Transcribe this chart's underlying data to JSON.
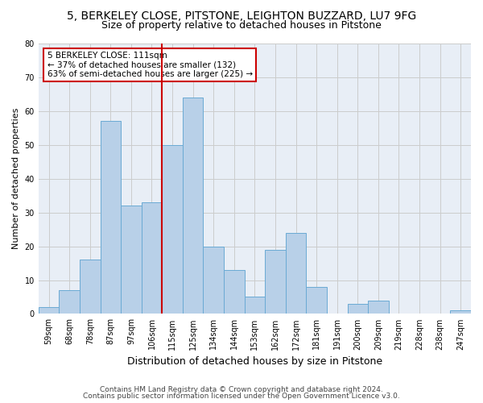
{
  "title1": "5, BERKELEY CLOSE, PITSTONE, LEIGHTON BUZZARD, LU7 9FG",
  "title2": "Size of property relative to detached houses in Pitstone",
  "xlabel": "Distribution of detached houses by size in Pitstone",
  "ylabel": "Number of detached properties",
  "categories": [
    "59sqm",
    "68sqm",
    "78sqm",
    "87sqm",
    "97sqm",
    "106sqm",
    "115sqm",
    "125sqm",
    "134sqm",
    "144sqm",
    "153sqm",
    "162sqm",
    "172sqm",
    "181sqm",
    "191sqm",
    "200sqm",
    "209sqm",
    "219sqm",
    "228sqm",
    "238sqm",
    "247sqm"
  ],
  "values": [
    2,
    7,
    16,
    57,
    32,
    33,
    50,
    64,
    20,
    13,
    5,
    19,
    24,
    8,
    0,
    3,
    4,
    0,
    0,
    0,
    1
  ],
  "bar_color": "#b8d0e8",
  "bar_edge_color": "#6aaad4",
  "vline_x_index": 6,
  "vline_color": "#cc0000",
  "annot_line1": "5 BERKELEY CLOSE: 111sqm",
  "annot_line2": "← 37% of detached houses are smaller (132)",
  "annot_line3": "63% of semi-detached houses are larger (225) →",
  "annotation_box_color": "white",
  "annotation_box_edge": "#cc0000",
  "ylim": [
    0,
    80
  ],
  "yticks": [
    0,
    10,
    20,
    30,
    40,
    50,
    60,
    70,
    80
  ],
  "grid_color": "#cccccc",
  "bg_color": "#e8eef6",
  "footer1": "Contains HM Land Registry data © Crown copyright and database right 2024.",
  "footer2": "Contains public sector information licensed under the Open Government Licence v3.0.",
  "title1_fontsize": 10,
  "title2_fontsize": 9,
  "xlabel_fontsize": 9,
  "ylabel_fontsize": 8,
  "tick_fontsize": 7,
  "annotation_fontsize": 7.5,
  "footer_fontsize": 6.5
}
